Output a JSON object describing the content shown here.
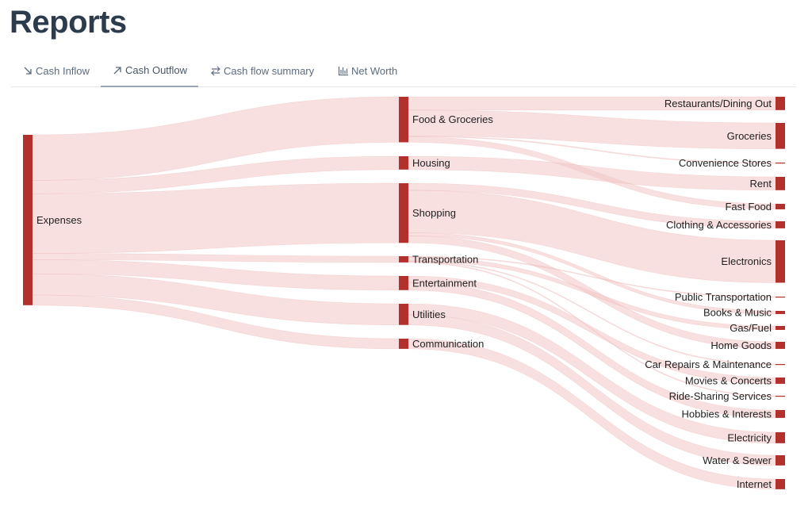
{
  "page": {
    "title": "Reports"
  },
  "tabs": [
    {
      "label": "Cash Inflow",
      "icon": "arrow-down-right-icon",
      "active": false
    },
    {
      "label": "Cash Outflow",
      "icon": "arrow-up-right-icon",
      "active": true
    },
    {
      "label": "Cash flow summary",
      "icon": "arrows-exchange-icon",
      "active": false
    },
    {
      "label": "Net Worth",
      "icon": "bar-chart-icon",
      "active": false
    }
  ],
  "colors": {
    "node": "#b3312d",
    "link": "#f3c7c6",
    "title": "#2d3c4d",
    "tab_text": "#5c6b7e"
  },
  "chart_data": {
    "type": "sankey",
    "title": "",
    "root": "Expenses",
    "categories": [
      "Food & Groceries",
      "Housing",
      "Shopping",
      "Transportation",
      "Entertainment",
      "Utilities",
      "Communication"
    ],
    "items": [
      "Restaurants/Dining Out",
      "Groceries",
      "Convenience Stores",
      "Rent",
      "Fast Food",
      "Clothing & Accessories",
      "Electronics",
      "Public Transportation",
      "Books & Music",
      "Gas/Fuel",
      "Home Goods",
      "Car Repairs & Maintenance",
      "Movies & Concerts",
      "Ride-Sharing Services",
      "Hobbies & Interests",
      "Electricity",
      "Water & Sewer",
      "Internet"
    ],
    "flows": [
      {
        "source": "Expenses",
        "target": "Food & Groceries",
        "value": 58
      },
      {
        "source": "Expenses",
        "target": "Housing",
        "value": 17
      },
      {
        "source": "Expenses",
        "target": "Shopping",
        "value": 76
      },
      {
        "source": "Expenses",
        "target": "Transportation",
        "value": 8
      },
      {
        "source": "Expenses",
        "target": "Entertainment",
        "value": 18
      },
      {
        "source": "Expenses",
        "target": "Utilities",
        "value": 27
      },
      {
        "source": "Expenses",
        "target": "Communication",
        "value": 13
      },
      {
        "source": "Food & Groceries",
        "target": "Restaurants/Dining Out",
        "value": 17
      },
      {
        "source": "Food & Groceries",
        "target": "Groceries",
        "value": 33
      },
      {
        "source": "Food & Groceries",
        "target": "Convenience Stores",
        "value": 1
      },
      {
        "source": "Food & Groceries",
        "target": "Fast Food",
        "value": 7
      },
      {
        "source": "Housing",
        "target": "Rent",
        "value": 17
      },
      {
        "source": "Shopping",
        "target": "Clothing & Accessories",
        "value": 9
      },
      {
        "source": "Shopping",
        "target": "Electronics",
        "value": 54
      },
      {
        "source": "Shopping",
        "target": "Books & Music",
        "value": 4
      },
      {
        "source": "Shopping",
        "target": "Home Goods",
        "value": 9
      },
      {
        "source": "Transportation",
        "target": "Public Transportation",
        "value": 1
      },
      {
        "source": "Transportation",
        "target": "Gas/Fuel",
        "value": 5
      },
      {
        "source": "Transportation",
        "target": "Car Repairs & Maintenance",
        "value": 1
      },
      {
        "source": "Transportation",
        "target": "Ride-Sharing Services",
        "value": 1
      },
      {
        "source": "Entertainment",
        "target": "Movies & Concerts",
        "value": 8
      },
      {
        "source": "Entertainment",
        "target": "Hobbies & Interests",
        "value": 10
      },
      {
        "source": "Utilities",
        "target": "Electricity",
        "value": 14
      },
      {
        "source": "Utilities",
        "target": "Water & Sewer",
        "value": 13
      },
      {
        "source": "Communication",
        "target": "Internet",
        "value": 13
      }
    ]
  }
}
